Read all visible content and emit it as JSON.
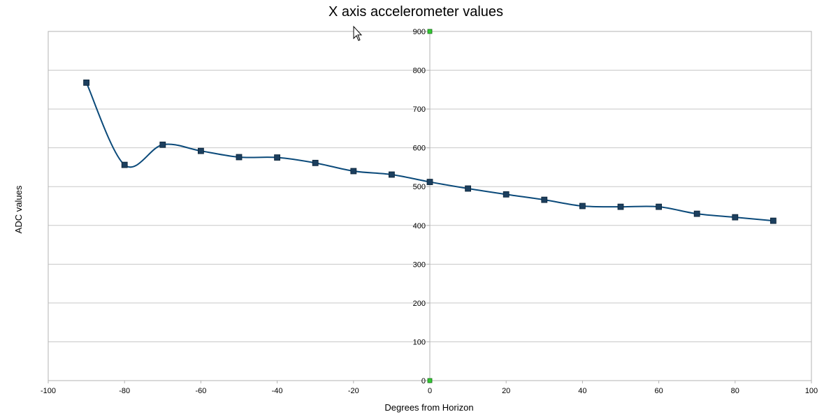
{
  "chart_data": {
    "type": "line",
    "title": "X axis accelerometer values",
    "xlabel": "Degrees from Horizon",
    "ylabel": "ADC values",
    "xlim": [
      -100,
      100
    ],
    "ylim": [
      0,
      900
    ],
    "xticks": [
      "-100",
      "-80",
      "-60",
      "-40",
      "-20",
      "0",
      "20",
      "40",
      "60",
      "80",
      "100"
    ],
    "yticks": [
      "0",
      "100",
      "200",
      "300",
      "400",
      "500",
      "600",
      "700",
      "800",
      "900"
    ],
    "grid": true,
    "smooth": true,
    "y_axis_position": "x=0",
    "series": [
      {
        "x": [
          -90,
          -80,
          -70,
          -60,
          -50,
          -40,
          -30,
          -20,
          -10,
          0,
          10,
          20,
          30,
          40,
          50,
          60,
          70,
          80,
          90
        ],
        "y": [
          768,
          556,
          608,
          592,
          576,
          575,
          561,
          540,
          531,
          512,
          495,
          480,
          466,
          450,
          448,
          448,
          430,
          421,
          412
        ]
      }
    ],
    "colors": {
      "line": "#0b4a7a",
      "marker": "#1c3f5e",
      "grid": "#c8c8c8",
      "axis_handle": "#33cc33"
    }
  }
}
